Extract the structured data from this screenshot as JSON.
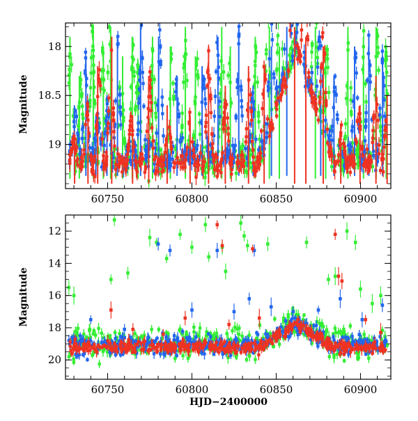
{
  "chart_data": [
    {
      "type": "scatter",
      "title": "",
      "xlabel": "",
      "ylabel": "Magnitude",
      "xlim": [
        60725,
        60918
      ],
      "ylim": [
        19.45,
        17.76
      ],
      "y_inverted": true,
      "x_ticks": [
        60750,
        60800,
        60850,
        60900
      ],
      "y_ticks": [
        18,
        18.5,
        19
      ],
      "y_tick_labels": [
        "18",
        "18.5",
        "19"
      ],
      "grid": false,
      "legend": "none",
      "series": [
        {
          "color": "#33ee33",
          "baseline": 19.15,
          "scatter": 0.15,
          "flares": [
            [
              60728,
              17.9
            ],
            [
              60734,
              18.3
            ],
            [
              60741,
              17.8
            ],
            [
              60747,
              18.0
            ],
            [
              60751,
              17.8
            ],
            [
              60758,
              18.1
            ],
            [
              60765,
              17.9
            ],
            [
              60768,
              18.2
            ],
            [
              60777,
              17.9
            ],
            [
              60788,
              18.0
            ],
            [
              60796,
              17.8
            ],
            [
              60803,
              18.1
            ],
            [
              60818,
              17.8
            ],
            [
              60822,
              18.0
            ],
            [
              60838,
              17.9
            ],
            [
              60845,
              17.8
            ],
            [
              60852,
              18.0
            ],
            [
              60873,
              17.8
            ],
            [
              60880,
              18.1
            ],
            [
              60893,
              17.8
            ],
            [
              60902,
              17.9
            ],
            [
              60910,
              17.8
            ],
            [
              60915,
              18.0
            ]
          ]
        },
        {
          "color": "#2266ee",
          "baseline": 19.12,
          "scatter": 0.13,
          "flares": [
            [
              60731,
              18.6
            ],
            [
              60737,
              18.1
            ],
            [
              60744,
              18.7
            ],
            [
              60750,
              18.5
            ],
            [
              60756,
              17.9
            ],
            [
              60770,
              17.8
            ],
            [
              60781,
              17.9
            ],
            [
              60791,
              18.3
            ],
            [
              60807,
              18.2
            ],
            [
              60815,
              17.9
            ],
            [
              60828,
              17.8
            ],
            [
              60836,
              18.4
            ],
            [
              60847,
              18.0
            ],
            [
              60857,
              17.8
            ],
            [
              60876,
              18.2
            ],
            [
              60885,
              18.3
            ],
            [
              60897,
              18.0
            ],
            [
              60905,
              17.9
            ],
            [
              60913,
              18.1
            ]
          ]
        },
        {
          "color": "#ee3322",
          "baseline": 19.2,
          "scatter": 0.1,
          "flares": [
            [
              60730,
              18.9
            ],
            [
              60738,
              18.6
            ],
            [
              60745,
              18.2
            ],
            [
              60752,
              17.9
            ],
            [
              60764,
              18.7
            ],
            [
              60775,
              18.3
            ],
            [
              60786,
              18.6
            ],
            [
              60799,
              18.7
            ],
            [
              60810,
              18.0
            ],
            [
              60820,
              18.4
            ],
            [
              60834,
              18.2
            ],
            [
              60843,
              18.3
            ],
            [
              60860,
              17.8
            ],
            [
              60867,
              17.9
            ],
            [
              60878,
              18.0
            ],
            [
              60889,
              18.8
            ],
            [
              60899,
              18.6
            ],
            [
              60909,
              18.3
            ],
            [
              60916,
              18.5
            ]
          ]
        }
      ],
      "quiescent_gap": [
        60863,
        60866
      ]
    },
    {
      "type": "scatter",
      "title": "",
      "xlabel": "HJD−2400000",
      "ylabel": "Magnitude",
      "xlim": [
        60725,
        60918
      ],
      "ylim": [
        21.2,
        11.0
      ],
      "y_inverted": true,
      "x_ticks": [
        60750,
        60800,
        60850,
        60900
      ],
      "y_ticks": [
        12,
        14,
        16,
        18,
        20
      ],
      "y_tick_labels": [
        "12",
        "14",
        "16",
        "18",
        "20"
      ],
      "grid": false,
      "legend": "none",
      "series": [
        {
          "color": "#33ee33",
          "baseline": 19.0,
          "scatter": 0.9,
          "outliers": [
            [
              60727,
              15.5
            ],
            [
              60730,
              16.0
            ],
            [
              60752,
              15.0
            ],
            [
              60754,
              11.3
            ],
            [
              60762,
              14.6
            ],
            [
              60775,
              12.4
            ],
            [
              60779,
              12.7
            ],
            [
              60785,
              13.7
            ],
            [
              60793,
              12.2
            ],
            [
              60800,
              13.0
            ],
            [
              60808,
              11.6
            ],
            [
              60810,
              13.6
            ],
            [
              60818,
              13.0
            ],
            [
              60820,
              14.5
            ],
            [
              60829,
              11.5
            ],
            [
              60831,
              12.3
            ],
            [
              60833,
              12.9
            ],
            [
              60845,
              12.8
            ],
            [
              60868,
              12.7
            ],
            [
              60881,
              15.0
            ],
            [
              60885,
              14.8
            ],
            [
              60892,
              12.0
            ],
            [
              60897,
              12.7
            ],
            [
              60900,
              15.6
            ],
            [
              60907,
              16.5
            ],
            [
              60912,
              16.0
            ]
          ]
        },
        {
          "color": "#2266ee",
          "baseline": 19.1,
          "scatter": 0.6,
          "outliers": [
            [
              60740,
              17.5
            ],
            [
              60760,
              18.1
            ],
            [
              60780,
              12.8
            ],
            [
              60787,
              13.2
            ],
            [
              60800,
              16.9
            ],
            [
              60815,
              13.2
            ],
            [
              60825,
              17.0
            ],
            [
              60834,
              16.2
            ],
            [
              60837,
              13.2
            ],
            [
              60847,
              16.7
            ],
            [
              60860,
              17.0
            ],
            [
              60875,
              16.9
            ],
            [
              60888,
              16.2
            ],
            [
              60901,
              17.5
            ],
            [
              60913,
              16.6
            ]
          ]
        },
        {
          "color": "#ee3322",
          "baseline": 19.2,
          "scatter": 0.35,
          "outliers": [
            [
              60752,
              16.9
            ],
            [
              60765,
              18.1
            ],
            [
              60783,
              18.4
            ],
            [
              60796,
              17.4
            ],
            [
              60815,
              11.6
            ],
            [
              60818,
              12.9
            ],
            [
              60822,
              17.8
            ],
            [
              60836,
              13.1
            ],
            [
              60840,
              17.4
            ],
            [
              60865,
              17.9
            ],
            [
              60885,
              12.2
            ],
            [
              60887,
              14.8
            ],
            [
              60889,
              15.1
            ],
            [
              60903,
              17.5
            ],
            [
              60912,
              18.3
            ]
          ]
        }
      ]
    }
  ]
}
